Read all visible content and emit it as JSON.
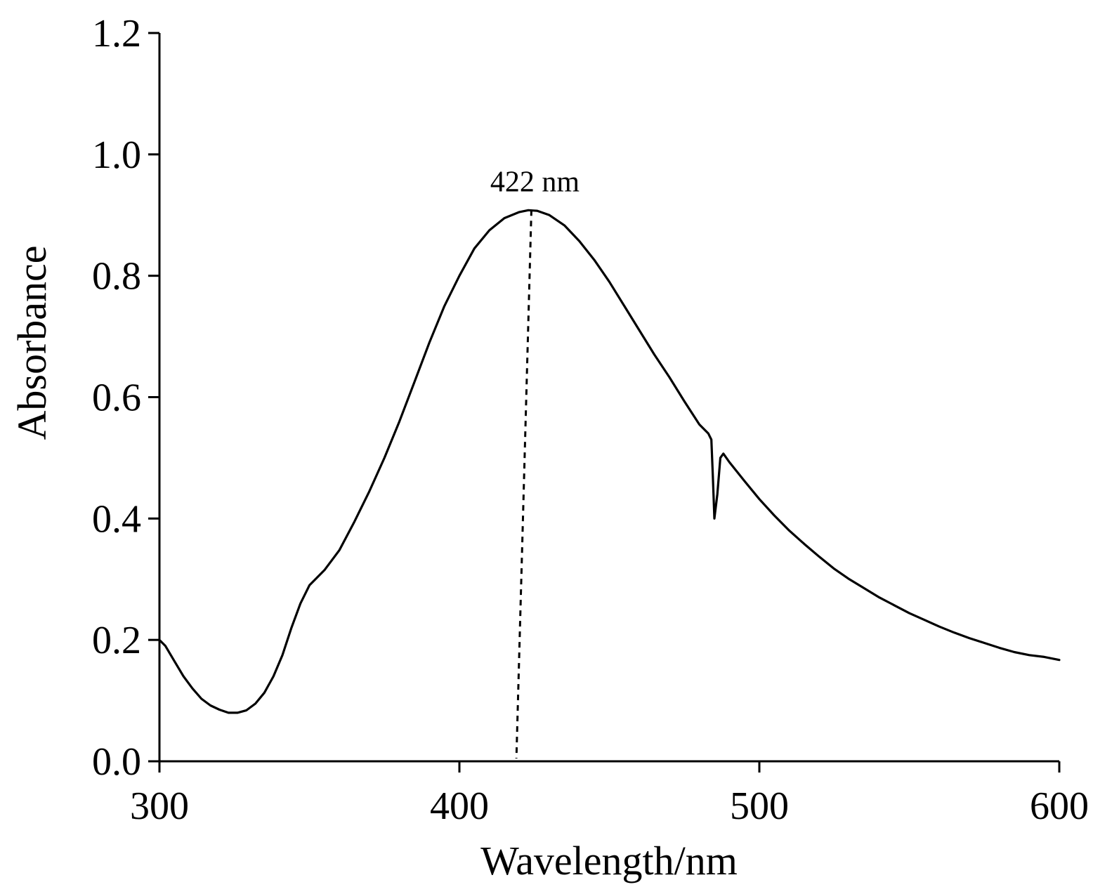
{
  "chart_data": {
    "type": "line",
    "title": "",
    "xlabel": "Wavelength/nm",
    "ylabel": "Absorbance",
    "xlim": [
      300,
      600
    ],
    "ylim": [
      0.0,
      1.2
    ],
    "x_ticks": [
      "300",
      "400",
      "500",
      "600"
    ],
    "y_ticks": [
      "0.0",
      "0.2",
      "0.4",
      "0.6",
      "0.8",
      "1.0",
      "1.2"
    ],
    "grid": false,
    "legend": "none",
    "line_color": "#000000",
    "series": [
      {
        "x": [
          300,
          302,
          305,
          308,
          311,
          314,
          317,
          320,
          323,
          326,
          329,
          332,
          335,
          338,
          341,
          344,
          347,
          350,
          355,
          360,
          365,
          370,
          375,
          380,
          385,
          390,
          395,
          400,
          405,
          410,
          415,
          420,
          423,
          426,
          430,
          435,
          440,
          445,
          450,
          455,
          460,
          465,
          470,
          475,
          480,
          483,
          484,
          484.5,
          485,
          486,
          487,
          488,
          490,
          495,
          500,
          505,
          510,
          515,
          520,
          525,
          530,
          535,
          540,
          545,
          550,
          555,
          560,
          565,
          570,
          575,
          580,
          585,
          590,
          595,
          600
        ],
        "y": [
          0.2,
          0.19,
          0.165,
          0.14,
          0.12,
          0.103,
          0.092,
          0.085,
          0.08,
          0.08,
          0.084,
          0.095,
          0.113,
          0.14,
          0.175,
          0.22,
          0.26,
          0.29,
          0.315,
          0.348,
          0.395,
          0.445,
          0.5,
          0.56,
          0.625,
          0.69,
          0.75,
          0.8,
          0.845,
          0.875,
          0.895,
          0.905,
          0.908,
          0.907,
          0.9,
          0.883,
          0.857,
          0.826,
          0.79,
          0.75,
          0.71,
          0.67,
          0.633,
          0.593,
          0.555,
          0.54,
          0.53,
          0.47,
          0.4,
          0.44,
          0.5,
          0.507,
          0.493,
          0.462,
          0.432,
          0.405,
          0.38,
          0.358,
          0.337,
          0.317,
          0.3,
          0.285,
          0.27,
          0.257,
          0.244,
          0.233,
          0.222,
          0.212,
          0.203,
          0.195,
          0.187,
          0.18,
          0.175,
          0.172,
          0.167
        ]
      }
    ],
    "annotations": [
      {
        "text": "422 nm",
        "x": 422,
        "y": 0.908,
        "style": "dotted-drop-line"
      }
    ]
  }
}
